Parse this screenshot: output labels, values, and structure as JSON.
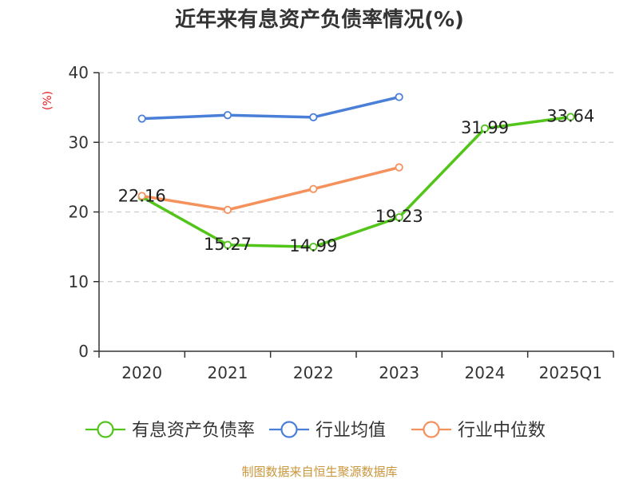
{
  "chart_data": {
    "type": "line",
    "title": "近年来有息资产负债率情况(%)",
    "ylabel": "(%)",
    "xlabel": "",
    "categories": [
      "2020",
      "2021",
      "2022",
      "2023",
      "2024",
      "2025Q1"
    ],
    "ylim": [
      0,
      40
    ],
    "yticks": [
      0,
      10,
      20,
      30,
      40
    ],
    "grid": true,
    "legend_position": "bottom",
    "series": [
      {
        "name": "有息资产负债率",
        "color": "#52c41a",
        "values": [
          22.16,
          15.27,
          14.99,
          19.23,
          31.99,
          33.64
        ],
        "labels": [
          "22.16",
          "15.27",
          "14.99",
          "19.23",
          "31.99",
          "33.64"
        ]
      },
      {
        "name": "行业均值",
        "color": "#4a7fd8",
        "values": [
          33.4,
          33.9,
          33.6,
          36.5,
          null,
          null
        ]
      },
      {
        "name": "行业中位数",
        "color": "#f4915c",
        "values": [
          22.3,
          20.3,
          23.3,
          26.4,
          null,
          null
        ]
      }
    ],
    "source": "制图数据来自恒生聚源数据库",
    "source_color": "#c8963c",
    "ylabel_color": "#e02020"
  }
}
